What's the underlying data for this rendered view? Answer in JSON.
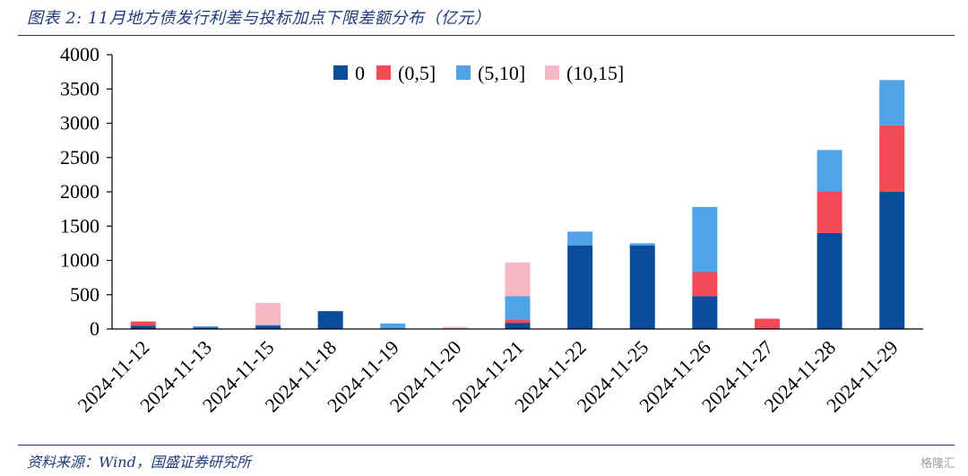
{
  "figure": {
    "title": "图表 2:  11月地方债发行利差与投标加点下限差额分布（亿元）",
    "source": "资料来源：Wind，国盛证券研究所",
    "watermark": "格隆汇"
  },
  "chart_data": {
    "type": "bar",
    "stacked": true,
    "categories": [
      "2024-11-12",
      "2024-11-13",
      "2024-11-15",
      "2024-11-18",
      "2024-11-19",
      "2024-11-20",
      "2024-11-21",
      "2024-11-22",
      "2024-11-25",
      "2024-11-26",
      "2024-11-27",
      "2024-11-28",
      "2024-11-29"
    ],
    "series": [
      {
        "name": "0",
        "color": "#0b4d9c",
        "values": [
          50,
          20,
          50,
          260,
          0,
          0,
          90,
          1220,
          1220,
          480,
          0,
          1400,
          2000
        ]
      },
      {
        "name": "(0,5]",
        "color": "#f24b55",
        "values": [
          60,
          0,
          0,
          0,
          0,
          0,
          50,
          0,
          0,
          350,
          150,
          600,
          970
        ]
      },
      {
        "name": "(5,10]",
        "color": "#4fa3e6",
        "values": [
          0,
          20,
          10,
          0,
          80,
          0,
          340,
          200,
          30,
          950,
          0,
          610,
          660
        ]
      },
      {
        "name": "(10,15]",
        "color": "#f8b7c5",
        "values": [
          0,
          0,
          320,
          0,
          0,
          30,
          490,
          0,
          0,
          0,
          0,
          0,
          0
        ]
      }
    ],
    "ylim": [
      0,
      4000
    ],
    "yticks": [
      0,
      500,
      1000,
      1500,
      2000,
      2500,
      3000,
      3500,
      4000
    ],
    "grid": false,
    "legend_position": "top-center",
    "xlabel": "",
    "ylabel": ""
  }
}
